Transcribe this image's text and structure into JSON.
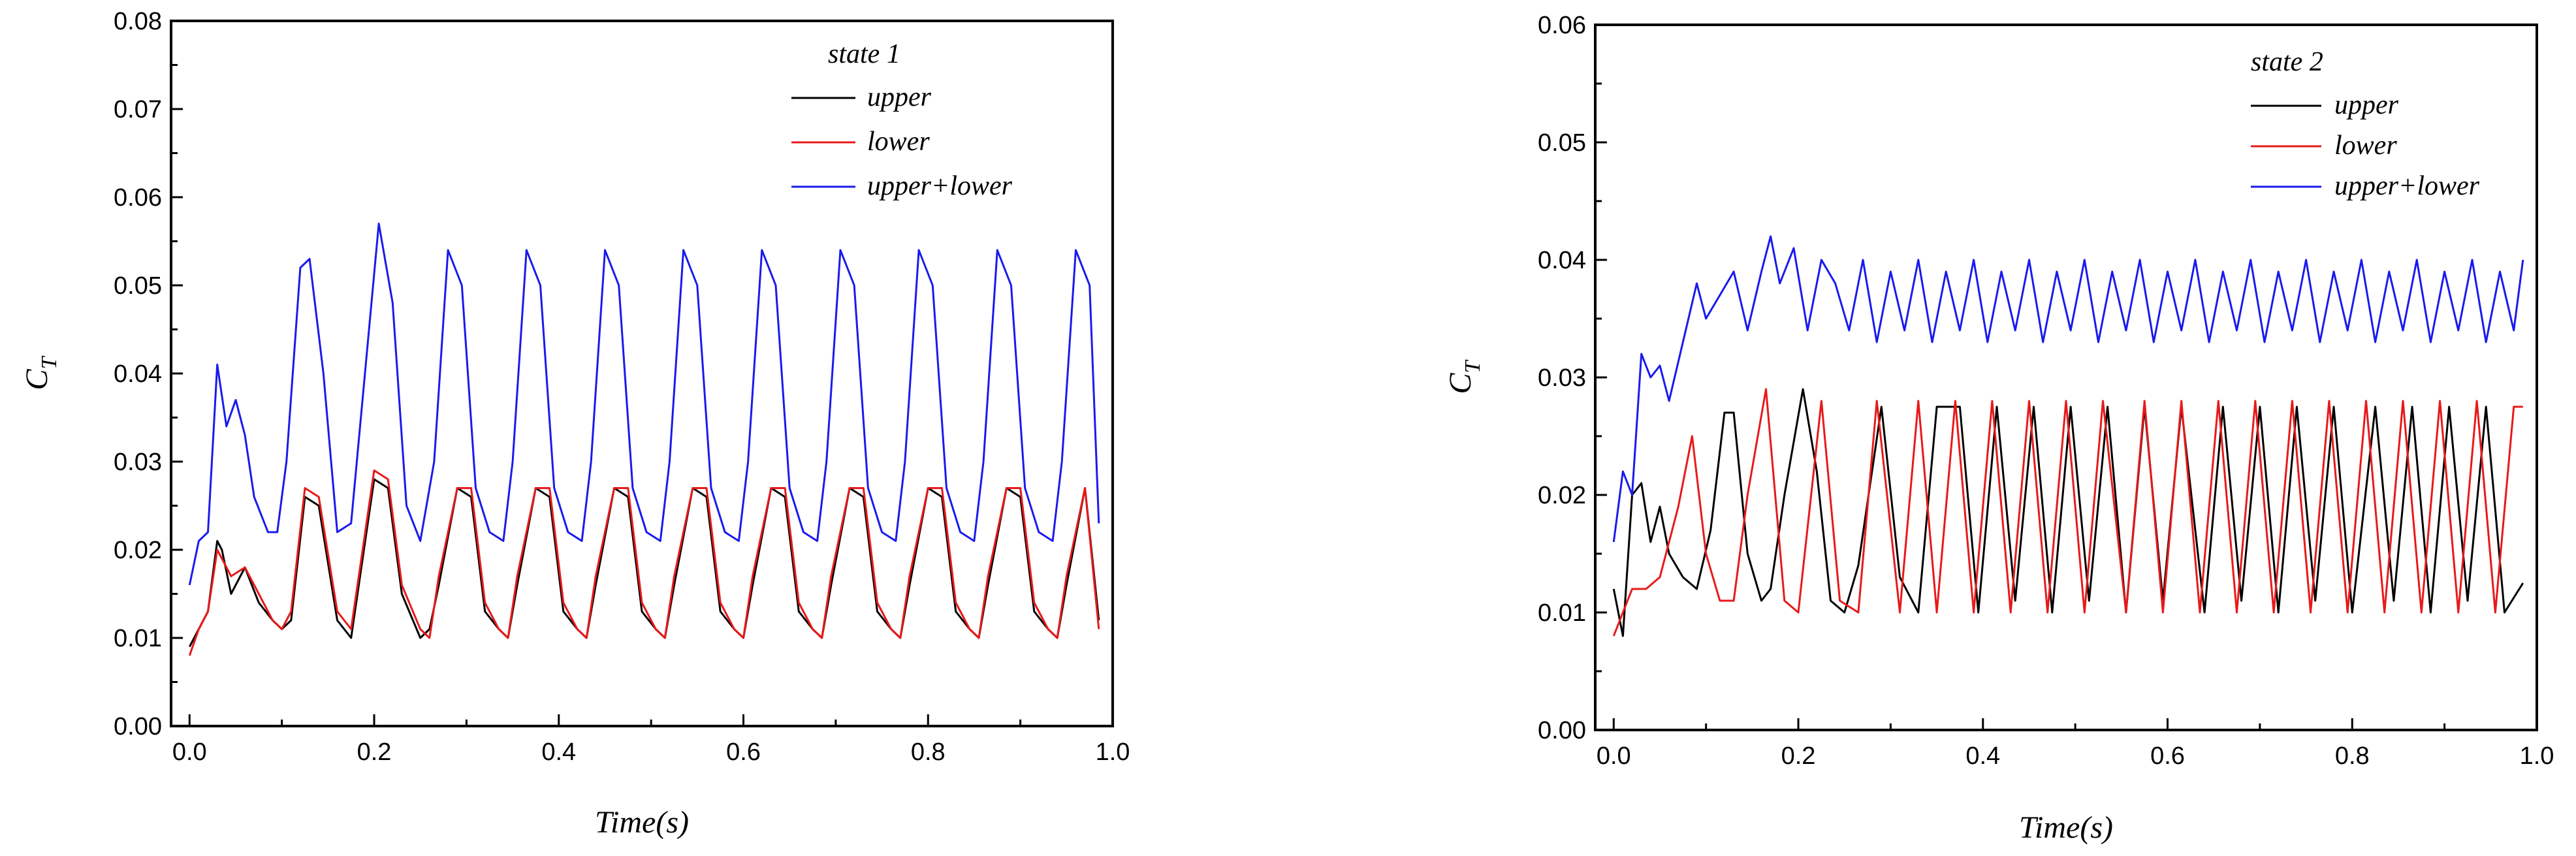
{
  "chart_data": [
    {
      "type": "line",
      "title": "",
      "legend_title": "state 1",
      "legend_position": "top-right",
      "xlabel": "Time(s)",
      "ylabel_main": "C",
      "ylabel_sub": "T",
      "xlim": [
        -0.02,
        1.0
      ],
      "ylim": [
        0.0,
        0.08
      ],
      "xticks": [
        0.0,
        0.2,
        0.4,
        0.6,
        0.8,
        1.0
      ],
      "xtick_labels": [
        "0.0",
        "0.2",
        "0.4",
        "0.6",
        "0.8",
        "1.0"
      ],
      "yticks": [
        0.0,
        0.01,
        0.02,
        0.03,
        0.04,
        0.05,
        0.06,
        0.07,
        0.08
      ],
      "ytick_labels": [
        "0.00",
        "0.01",
        "0.02",
        "0.03",
        "0.04",
        "0.05",
        "0.06",
        "0.07",
        "0.08"
      ],
      "grid": false,
      "series": [
        {
          "name": "upper",
          "color": "#000000",
          "x": [
            0.0,
            0.01,
            0.02,
            0.03,
            0.035,
            0.045,
            0.06,
            0.075,
            0.09,
            0.1,
            0.11,
            0.125,
            0.14,
            0.16,
            0.175,
            0.2,
            0.215,
            0.23,
            0.25,
            0.26,
            0.27,
            0.29,
            0.305,
            0.32,
            0.335,
            0.345,
            0.355,
            0.375,
            0.39,
            0.405,
            0.42,
            0.43,
            0.44,
            0.46,
            0.475,
            0.49,
            0.505,
            0.515,
            0.525,
            0.545,
            0.56,
            0.575,
            0.59,
            0.6,
            0.61,
            0.63,
            0.645,
            0.66,
            0.675,
            0.685,
            0.695,
            0.715,
            0.73,
            0.745,
            0.76,
            0.77,
            0.78,
            0.8,
            0.815,
            0.83,
            0.845,
            0.855,
            0.865,
            0.885,
            0.9,
            0.915,
            0.93,
            0.94,
            0.95,
            0.97,
            0.985
          ],
          "y": [
            0.009,
            0.011,
            0.013,
            0.021,
            0.02,
            0.015,
            0.018,
            0.014,
            0.012,
            0.011,
            0.012,
            0.026,
            0.025,
            0.012,
            0.01,
            0.028,
            0.027,
            0.015,
            0.01,
            0.011,
            0.016,
            0.027,
            0.026,
            0.013,
            0.011,
            0.01,
            0.016,
            0.027,
            0.026,
            0.013,
            0.011,
            0.01,
            0.016,
            0.027,
            0.026,
            0.013,
            0.011,
            0.01,
            0.016,
            0.027,
            0.026,
            0.013,
            0.011,
            0.01,
            0.016,
            0.027,
            0.026,
            0.013,
            0.011,
            0.01,
            0.016,
            0.027,
            0.026,
            0.013,
            0.011,
            0.01,
            0.016,
            0.027,
            0.026,
            0.013,
            0.011,
            0.01,
            0.016,
            0.027,
            0.026,
            0.013,
            0.011,
            0.01,
            0.016,
            0.027,
            0.012
          ]
        },
        {
          "name": "lower",
          "color": "#e8191a",
          "x": [
            0.0,
            0.01,
            0.02,
            0.03,
            0.035,
            0.045,
            0.06,
            0.075,
            0.09,
            0.1,
            0.11,
            0.125,
            0.14,
            0.16,
            0.175,
            0.2,
            0.215,
            0.23,
            0.25,
            0.26,
            0.27,
            0.29,
            0.305,
            0.32,
            0.335,
            0.345,
            0.355,
            0.375,
            0.39,
            0.405,
            0.42,
            0.43,
            0.44,
            0.46,
            0.475,
            0.49,
            0.505,
            0.515,
            0.525,
            0.545,
            0.56,
            0.575,
            0.59,
            0.6,
            0.61,
            0.63,
            0.645,
            0.66,
            0.675,
            0.685,
            0.695,
            0.715,
            0.73,
            0.745,
            0.76,
            0.77,
            0.78,
            0.8,
            0.815,
            0.83,
            0.845,
            0.855,
            0.865,
            0.885,
            0.9,
            0.915,
            0.93,
            0.94,
            0.95,
            0.97,
            0.985
          ],
          "y": [
            0.008,
            0.011,
            0.013,
            0.02,
            0.019,
            0.017,
            0.018,
            0.015,
            0.012,
            0.011,
            0.013,
            0.027,
            0.026,
            0.013,
            0.011,
            0.029,
            0.028,
            0.016,
            0.011,
            0.01,
            0.017,
            0.027,
            0.027,
            0.014,
            0.011,
            0.01,
            0.017,
            0.027,
            0.027,
            0.014,
            0.011,
            0.01,
            0.017,
            0.027,
            0.027,
            0.014,
            0.011,
            0.01,
            0.017,
            0.027,
            0.027,
            0.014,
            0.011,
            0.01,
            0.017,
            0.027,
            0.027,
            0.014,
            0.011,
            0.01,
            0.017,
            0.027,
            0.027,
            0.014,
            0.011,
            0.01,
            0.017,
            0.027,
            0.027,
            0.014,
            0.011,
            0.01,
            0.017,
            0.027,
            0.027,
            0.014,
            0.011,
            0.01,
            0.017,
            0.027,
            0.011
          ]
        },
        {
          "name": "upper+lower",
          "color": "#1a1aee",
          "x": [
            0.0,
            0.01,
            0.02,
            0.03,
            0.04,
            0.05,
            0.06,
            0.07,
            0.085,
            0.095,
            0.105,
            0.12,
            0.13,
            0.145,
            0.16,
            0.175,
            0.19,
            0.205,
            0.22,
            0.235,
            0.25,
            0.265,
            0.28,
            0.295,
            0.31,
            0.325,
            0.34,
            0.35,
            0.365,
            0.38,
            0.395,
            0.41,
            0.425,
            0.435,
            0.45,
            0.465,
            0.48,
            0.495,
            0.51,
            0.52,
            0.535,
            0.55,
            0.565,
            0.58,
            0.595,
            0.605,
            0.62,
            0.635,
            0.65,
            0.665,
            0.68,
            0.69,
            0.705,
            0.72,
            0.735,
            0.75,
            0.765,
            0.775,
            0.79,
            0.805,
            0.82,
            0.835,
            0.85,
            0.86,
            0.875,
            0.89,
            0.905,
            0.92,
            0.935,
            0.945,
            0.96,
            0.975,
            0.985
          ],
          "y": [
            0.016,
            0.021,
            0.022,
            0.041,
            0.034,
            0.037,
            0.033,
            0.026,
            0.022,
            0.022,
            0.03,
            0.052,
            0.053,
            0.04,
            0.022,
            0.023,
            0.04,
            0.057,
            0.048,
            0.025,
            0.021,
            0.03,
            0.054,
            0.05,
            0.027,
            0.022,
            0.021,
            0.03,
            0.054,
            0.05,
            0.027,
            0.022,
            0.021,
            0.03,
            0.054,
            0.05,
            0.027,
            0.022,
            0.021,
            0.03,
            0.054,
            0.05,
            0.027,
            0.022,
            0.021,
            0.03,
            0.054,
            0.05,
            0.027,
            0.022,
            0.021,
            0.03,
            0.054,
            0.05,
            0.027,
            0.022,
            0.021,
            0.03,
            0.054,
            0.05,
            0.027,
            0.022,
            0.021,
            0.03,
            0.054,
            0.05,
            0.027,
            0.022,
            0.021,
            0.03,
            0.054,
            0.05,
            0.023
          ]
        }
      ]
    },
    {
      "type": "line",
      "title": "",
      "legend_title": "state 2",
      "legend_position": "top-right",
      "xlabel": "Time(s)",
      "ylabel_main": "C",
      "ylabel_sub": "T",
      "xlim": [
        -0.02,
        1.0
      ],
      "ylim": [
        0.0,
        0.06
      ],
      "xticks": [
        0.0,
        0.2,
        0.4,
        0.6,
        0.8,
        1.0
      ],
      "xtick_labels": [
        "0.0",
        "0.2",
        "0.4",
        "0.6",
        "0.8",
        "1.0"
      ],
      "yticks": [
        0.0,
        0.01,
        0.02,
        0.03,
        0.04,
        0.05,
        0.06
      ],
      "ytick_labels": [
        "0.00",
        "0.01",
        "0.02",
        "0.03",
        "0.04",
        "0.05",
        "0.06"
      ],
      "grid": false,
      "series": [
        {
          "name": "upper",
          "color": "#000000",
          "x": [
            0.0,
            0.01,
            0.02,
            0.03,
            0.04,
            0.05,
            0.06,
            0.075,
            0.09,
            0.105,
            0.12,
            0.13,
            0.145,
            0.16,
            0.17,
            0.185,
            0.205,
            0.22,
            0.235,
            0.25,
            0.265,
            0.29,
            0.31,
            0.33,
            0.35,
            0.375,
            0.395,
            0.415,
            0.435,
            0.455,
            0.475,
            0.495,
            0.515,
            0.535,
            0.555,
            0.575,
            0.595,
            0.615,
            0.64,
            0.66,
            0.68,
            0.7,
            0.72,
            0.74,
            0.76,
            0.78,
            0.8,
            0.825,
            0.845,
            0.865,
            0.885,
            0.905,
            0.925,
            0.945,
            0.965,
            0.985
          ],
          "y": [
            0.012,
            0.008,
            0.02,
            0.021,
            0.016,
            0.019,
            0.015,
            0.013,
            0.012,
            0.017,
            0.027,
            0.027,
            0.015,
            0.011,
            0.012,
            0.02,
            0.029,
            0.022,
            0.011,
            0.01,
            0.014,
            0.0275,
            0.013,
            0.01,
            0.0275,
            0.0275,
            0.01,
            0.0275,
            0.011,
            0.0275,
            0.01,
            0.0275,
            0.011,
            0.0275,
            0.01,
            0.0275,
            0.011,
            0.0275,
            0.01,
            0.0275,
            0.011,
            0.0275,
            0.01,
            0.0275,
            0.011,
            0.0275,
            0.01,
            0.0275,
            0.011,
            0.0275,
            0.01,
            0.0275,
            0.011,
            0.0275,
            0.01,
            0.0125
          ]
        },
        {
          "name": "lower",
          "color": "#e8191a",
          "x": [
            0.0,
            0.01,
            0.02,
            0.035,
            0.05,
            0.06,
            0.07,
            0.085,
            0.1,
            0.115,
            0.13,
            0.145,
            0.165,
            0.185,
            0.2,
            0.225,
            0.245,
            0.265,
            0.285,
            0.31,
            0.33,
            0.35,
            0.37,
            0.39,
            0.41,
            0.43,
            0.45,
            0.47,
            0.49,
            0.51,
            0.53,
            0.555,
            0.575,
            0.595,
            0.615,
            0.635,
            0.655,
            0.675,
            0.695,
            0.715,
            0.735,
            0.755,
            0.775,
            0.795,
            0.815,
            0.835,
            0.855,
            0.875,
            0.895,
            0.915,
            0.935,
            0.955,
            0.975,
            0.985
          ],
          "y": [
            0.008,
            0.01,
            0.012,
            0.012,
            0.013,
            0.016,
            0.019,
            0.025,
            0.015,
            0.011,
            0.011,
            0.02,
            0.029,
            0.011,
            0.01,
            0.028,
            0.011,
            0.01,
            0.028,
            0.01,
            0.028,
            0.01,
            0.028,
            0.01,
            0.028,
            0.01,
            0.028,
            0.01,
            0.028,
            0.01,
            0.028,
            0.01,
            0.028,
            0.01,
            0.028,
            0.01,
            0.028,
            0.01,
            0.028,
            0.01,
            0.028,
            0.01,
            0.028,
            0.01,
            0.028,
            0.01,
            0.028,
            0.01,
            0.028,
            0.01,
            0.028,
            0.01,
            0.0275,
            0.0275
          ]
        },
        {
          "name": "upper+lower",
          "color": "#1a1aee",
          "x": [
            0.0,
            0.01,
            0.02,
            0.03,
            0.04,
            0.05,
            0.06,
            0.075,
            0.09,
            0.1,
            0.115,
            0.13,
            0.145,
            0.16,
            0.17,
            0.18,
            0.195,
            0.21,
            0.225,
            0.24,
            0.255,
            0.27,
            0.285,
            0.3,
            0.315,
            0.33,
            0.345,
            0.36,
            0.375,
            0.39,
            0.405,
            0.42,
            0.435,
            0.45,
            0.465,
            0.48,
            0.495,
            0.51,
            0.525,
            0.54,
            0.555,
            0.57,
            0.585,
            0.6,
            0.615,
            0.63,
            0.645,
            0.66,
            0.675,
            0.69,
            0.705,
            0.72,
            0.735,
            0.75,
            0.765,
            0.78,
            0.795,
            0.81,
            0.825,
            0.84,
            0.855,
            0.87,
            0.885,
            0.9,
            0.915,
            0.93,
            0.945,
            0.96,
            0.975,
            0.985
          ],
          "y": [
            0.016,
            0.022,
            0.02,
            0.032,
            0.03,
            0.031,
            0.028,
            0.033,
            0.038,
            0.035,
            0.037,
            0.039,
            0.034,
            0.039,
            0.042,
            0.038,
            0.041,
            0.034,
            0.04,
            0.038,
            0.034,
            0.04,
            0.033,
            0.039,
            0.034,
            0.04,
            0.033,
            0.039,
            0.034,
            0.04,
            0.033,
            0.039,
            0.034,
            0.04,
            0.033,
            0.039,
            0.034,
            0.04,
            0.033,
            0.039,
            0.034,
            0.04,
            0.033,
            0.039,
            0.034,
            0.04,
            0.033,
            0.039,
            0.034,
            0.04,
            0.033,
            0.039,
            0.034,
            0.04,
            0.033,
            0.039,
            0.034,
            0.04,
            0.033,
            0.039,
            0.034,
            0.04,
            0.033,
            0.039,
            0.034,
            0.04,
            0.033,
            0.039,
            0.034,
            0.04
          ]
        }
      ]
    }
  ]
}
